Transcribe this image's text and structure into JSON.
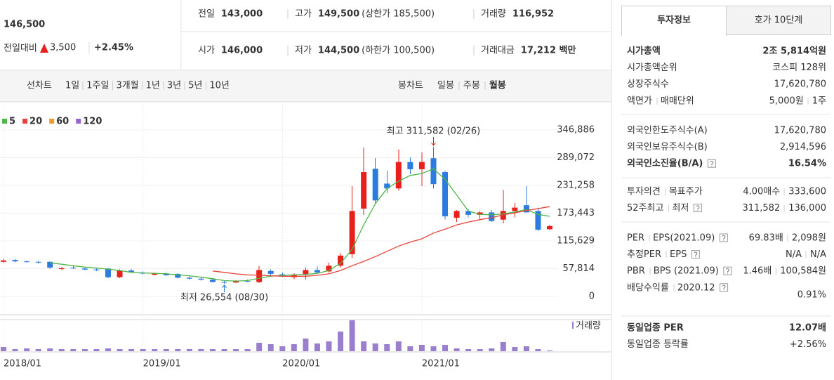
{
  "quote": {
    "price": "146,500",
    "change_label": "전일대비",
    "change": "3,500",
    "change_rate": "+2.45%",
    "color": "#e8201c"
  },
  "summary": [
    [
      {
        "label": "전일",
        "value": "143,000"
      },
      {
        "label": "고가",
        "value": "149,500",
        "note": "(상한가 185,500)",
        "color": "#e8201c"
      },
      {
        "label": "거래량",
        "value": "116,952"
      }
    ],
    [
      {
        "label": "시가",
        "value": "146,000",
        "color": "#e8201c"
      },
      {
        "label": "저가",
        "value": "144,500",
        "note": "(하한가 100,500)",
        "color": "#e8201c"
      },
      {
        "label": "거래대금",
        "value": "17,212 백만"
      }
    ]
  ],
  "tabs": {
    "line_label": "선차트",
    "line": [
      "1일",
      "1주일",
      "3개월",
      "1년",
      "3년",
      "5년",
      "10년"
    ],
    "candle_label": "봉차트",
    "candle": [
      "일봉",
      "주봉",
      "월봉"
    ],
    "active_candle": 2
  },
  "chart_data": {
    "type": "candlestick",
    "x": [
      "2018/01",
      "2018/02",
      "2018/03",
      "2018/04",
      "2018/05",
      "2018/06",
      "2018/07",
      "2018/08",
      "2018/09",
      "2018/10",
      "2018/11",
      "2018/12",
      "2019/01",
      "2019/02",
      "2019/03",
      "2019/04",
      "2019/05",
      "2019/06",
      "2019/07",
      "2019/08",
      "2019/09",
      "2019/10",
      "2019/11",
      "2019/12",
      "2020/01",
      "2020/02",
      "2020/03",
      "2020/04",
      "2020/05",
      "2020/06",
      "2020/07",
      "2020/08",
      "2020/09",
      "2020/10",
      "2020/11",
      "2020/12",
      "2021/01",
      "2021/02",
      "2021/03",
      "2021/04",
      "2021/05",
      "2021/06",
      "2021/07",
      "2021/08",
      "2021/09",
      "2021/10",
      "2021/11",
      "2021/12"
    ],
    "open": [
      72000,
      76000,
      73000,
      72000,
      72000,
      57000,
      60000,
      58000,
      56000,
      58000,
      40000,
      54000,
      49000,
      45000,
      48000,
      47000,
      39000,
      37000,
      35000,
      30000,
      29000,
      32000,
      30000,
      53000,
      46000,
      40000,
      45000,
      55000,
      52000,
      64000,
      88000,
      183000,
      266000,
      235000,
      225000,
      280000,
      265000,
      288000,
      259000,
      164000,
      178000,
      170000,
      175000,
      160000,
      178000,
      190000,
      178000,
      140000
    ],
    "high": [
      78000,
      78000,
      75000,
      74000,
      73000,
      61000,
      63000,
      60000,
      58000,
      59000,
      56000,
      57000,
      52000,
      50000,
      50000,
      48000,
      42000,
      40000,
      37000,
      33000,
      34000,
      35000,
      64000,
      56000,
      50000,
      48000,
      60000,
      62000,
      70000,
      90000,
      230000,
      310000,
      288000,
      262000,
      306000,
      290000,
      300000,
      311582,
      262000,
      180000,
      182000,
      178000,
      180000,
      222000,
      195000,
      230000,
      185000,
      149500
    ],
    "low": [
      70000,
      71000,
      70000,
      69000,
      58000,
      55000,
      57000,
      54000,
      53000,
      38000,
      38000,
      50000,
      46000,
      44000,
      43000,
      37000,
      35000,
      33000,
      29000,
      26554,
      28000,
      30000,
      28000,
      44000,
      40000,
      36000,
      35000,
      48000,
      50000,
      60000,
      80000,
      170000,
      195000,
      215000,
      220000,
      255000,
      230000,
      225000,
      160000,
      155000,
      165000,
      162000,
      155000,
      152000,
      165000,
      175000,
      136000,
      138000
    ],
    "close": [
      75000,
      73000,
      72000,
      71000,
      60000,
      59000,
      59000,
      56000,
      55000,
      40000,
      54000,
      51000,
      48000,
      48000,
      44000,
      39000,
      37000,
      35000,
      30000,
      29000,
      32000,
      31000,
      55000,
      47000,
      43000,
      45000,
      55000,
      50000,
      64000,
      85000,
      178000,
      259000,
      200000,
      225000,
      280000,
      265000,
      280000,
      234000,
      167000,
      178000,
      170000,
      175000,
      157000,
      178000,
      185000,
      175000,
      139000,
      146500
    ],
    "up_color": "#e8201c",
    "down_color": "#2b7be0",
    "series": [
      {
        "name": "5",
        "color": "#4fb648",
        "values": [
          null,
          null,
          null,
          null,
          70000,
          67000,
          64000,
          61000,
          59000,
          57000,
          54000,
          50000,
          49000,
          48000,
          47000,
          45000,
          43000,
          40000,
          37000,
          33000,
          32000,
          33000,
          38000,
          42000,
          44000,
          45000,
          46000,
          48000,
          54000,
          69000,
          98000,
          149000,
          193000,
          225000,
          240000,
          252000,
          256000,
          266000,
          244000,
          211000,
          178000,
          171000,
          170000,
          172000,
          176000,
          181000,
          171000,
          167000
        ]
      },
      {
        "name": "20",
        "color": "#e8413b",
        "values": [
          null,
          null,
          null,
          null,
          null,
          null,
          null,
          null,
          null,
          null,
          null,
          null,
          null,
          null,
          null,
          null,
          null,
          null,
          53000,
          50000,
          47000,
          45000,
          44000,
          43000,
          42000,
          42000,
          42000,
          44000,
          47000,
          54000,
          64000,
          73000,
          83000,
          94000,
          105000,
          113000,
          120000,
          132000,
          140000,
          149000,
          155000,
          160000,
          164000,
          170000,
          174000,
          179000,
          183000,
          187000
        ]
      },
      {
        "name": "60",
        "color": "#f39a2b"
      },
      {
        "name": "120",
        "color": "#9765cf"
      }
    ],
    "ylim": [
      0,
      346886
    ],
    "yticks": [
      0,
      {
        "value": 57814,
        "label": "57,814"
      },
      {
        "value": 115629,
        "label": "115,629"
      },
      {
        "value": 173443,
        "label": "173,443"
      },
      {
        "value": 231258,
        "label": "231,258"
      },
      {
        "value": 289072,
        "label": "289,072"
      },
      {
        "value": 346886,
        "label": "346,886"
      }
    ],
    "xticks": [
      "2018/01",
      "2019/01",
      "2020/01",
      "2021/01"
    ],
    "grid": true,
    "annotations": [
      {
        "text": "최고 311,582 (02/26)",
        "x": "2021/02",
        "y": 311582
      },
      {
        "text": "최저 26,554 (08/30)",
        "x": "2019/08",
        "y": 26554
      }
    ],
    "volume": {
      "name": "거래량",
      "color": "#9b7fcf",
      "values": [
        6,
        3,
        4,
        3,
        4,
        3,
        3,
        3,
        3,
        4,
        3,
        3,
        3,
        3,
        3,
        3,
        3,
        3,
        3,
        3,
        3,
        3,
        12,
        10,
        7,
        10,
        18,
        11,
        14,
        28,
        44,
        14,
        11,
        10,
        14,
        7,
        9,
        7,
        9,
        4,
        3,
        3,
        4,
        13,
        6,
        7,
        3,
        1
      ]
    }
  },
  "invest": {
    "tabs": [
      "투자정보",
      "호가 10단계"
    ],
    "active_tab": 0,
    "sections": [
      [
        {
          "labels": [
            "시가총액"
          ],
          "values": [
            "2조 5,814억원"
          ],
          "bold": true
        },
        {
          "labels": [
            "시가총액순위"
          ],
          "values": [
            "코스피 128위"
          ]
        },
        {
          "labels": [
            "상장주식수"
          ],
          "values": [
            "17,620,780"
          ]
        },
        {
          "labels": [
            "액면가",
            "매매단위"
          ],
          "values": [
            "5,000원",
            "1주"
          ]
        }
      ],
      [
        {
          "labels": [
            "외국인한도주식수(A)"
          ],
          "values": [
            "17,620,780"
          ]
        },
        {
          "labels": [
            "외국인보유주식수(B)"
          ],
          "values": [
            "2,914,596"
          ]
        },
        {
          "labels": [
            "외국인소진율(B/A)"
          ],
          "values": [
            "16.54%"
          ],
          "bold": true,
          "help": true
        }
      ],
      [
        {
          "labels": [
            "투자의견",
            "목표주가"
          ],
          "values": [
            "4.00매수",
            "333,600"
          ],
          "color": "#e8201c"
        },
        {
          "labels": [
            "52주최고",
            "최저"
          ],
          "values": [
            "311,582",
            "136,000"
          ],
          "help": true
        }
      ],
      [
        {
          "labels": [
            "PER",
            "EPS(2021.09)"
          ],
          "values": [
            "69.83배",
            "2,098원"
          ],
          "help": true
        },
        {
          "labels": [
            "추정PER",
            "EPS"
          ],
          "values": [
            "N/A",
            "N/A"
          ],
          "help": true
        },
        {
          "labels": [
            "PBR",
            "BPS (2021.09)"
          ],
          "values": [
            "1.46배",
            "100,584원"
          ],
          "help": true
        },
        {
          "labels": [
            "배당수익률",
            "2020.12"
          ],
          "values": [
            "0.91%"
          ],
          "help": true
        }
      ],
      [
        {
          "labels": [
            "동일업종 PER"
          ],
          "values": [
            "12.07배"
          ],
          "bold": true
        },
        {
          "labels": [
            "동일업종 등락률"
          ],
          "values": [
            "+2.56%"
          ],
          "color": "#e8201c"
        }
      ]
    ]
  }
}
